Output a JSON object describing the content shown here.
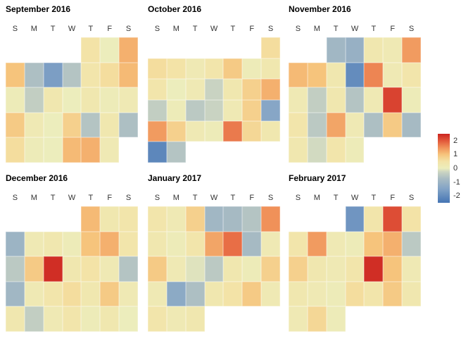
{
  "figure": {
    "background": "#ffffff"
  },
  "chart_data": {
    "type": "heatmap",
    "subtype": "calendar-heatmap",
    "title": "",
    "weekday_labels": [
      "S",
      "M",
      "T",
      "W",
      "T",
      "F",
      "S"
    ],
    "legend": {
      "position": "right",
      "ticks": [
        2,
        1,
        0,
        -1,
        -2
      ],
      "domain": [
        -2.5,
        2.5
      ]
    },
    "palette": {
      "description": "diverging blue-gray-yellow-orange-red (RdYlBu-like, low=blue high=red)",
      "stops": [
        {
          "t": 0.0,
          "color": "#4575b4"
        },
        {
          "t": 0.2,
          "color": "#82a3c6"
        },
        {
          "t": 0.35,
          "color": "#a9bcc3"
        },
        {
          "t": 0.45,
          "color": "#ccd5c2"
        },
        {
          "t": 0.5,
          "color": "#ecedbc"
        },
        {
          "t": 0.6,
          "color": "#f3e3a7"
        },
        {
          "t": 0.7,
          "color": "#f6c47c"
        },
        {
          "t": 0.8,
          "color": "#f09159"
        },
        {
          "t": 0.9,
          "color": "#e2573a"
        },
        {
          "t": 1.0,
          "color": "#cb2420"
        }
      ]
    },
    "months": [
      {
        "title": "September 2016",
        "weeks": [
          [
            null,
            null,
            null,
            null,
            0.5,
            0.0,
            1.2
          ],
          [
            1.0,
            -0.7,
            -1.6,
            -0.6,
            0.4,
            0.6,
            1.1
          ],
          [
            0.1,
            -0.4,
            0.3,
            0.0,
            0.3,
            0.1,
            0.2
          ],
          [
            0.9,
            0.2,
            0.0,
            0.8,
            -0.6,
            0.3,
            -0.7
          ],
          [
            0.6,
            0.1,
            0.0,
            1.1,
            1.2,
            0.2,
            null
          ]
        ]
      },
      {
        "title": "October 2016",
        "weeks": [
          [
            null,
            null,
            null,
            null,
            null,
            null,
            0.6
          ],
          [
            0.6,
            0.5,
            0.2,
            0.4,
            0.9,
            0.1,
            0.3
          ],
          [
            0.4,
            0.0,
            0.2,
            -0.3,
            0.3,
            0.8,
            1.2
          ],
          [
            -0.4,
            0.1,
            -0.5,
            -0.3,
            0.2,
            0.8,
            -1.4
          ],
          [
            1.4,
            0.8,
            0.2,
            0.1,
            1.7,
            0.7,
            0.3
          ],
          [
            -2.1,
            -0.6,
            null,
            null,
            null,
            null,
            null
          ]
        ]
      },
      {
        "title": "November 2016",
        "weeks": [
          [
            null,
            null,
            -0.9,
            -1.1,
            0.3,
            0.2,
            1.4
          ],
          [
            1.1,
            1.0,
            0.3,
            -2.0,
            1.6,
            0.2,
            0.4
          ],
          [
            0.2,
            -0.4,
            0.3,
            -0.6,
            0.2,
            2.2,
            0.1
          ],
          [
            0.4,
            -0.5,
            1.3,
            0.2,
            -0.7,
            0.9,
            -0.8
          ],
          [
            0.3,
            -0.2,
            0.4,
            0.1,
            null,
            null,
            null
          ]
        ]
      },
      {
        "title": "December 2016",
        "weeks": [
          [
            null,
            null,
            null,
            null,
            1.1,
            0.3,
            0.4
          ],
          [
            -1.0,
            0.2,
            0.3,
            0.1,
            1.0,
            1.2,
            0.4
          ],
          [
            -0.5,
            0.9,
            2.4,
            0.3,
            0.5,
            0.2,
            -0.6
          ],
          [
            -0.9,
            0.2,
            0.4,
            0.6,
            0.3,
            0.9,
            0.2
          ],
          [
            0.3,
            -0.4,
            0.2,
            0.4,
            0.1,
            0.3,
            0.0
          ]
        ]
      },
      {
        "title": "January 2017",
        "weeks": [
          [
            0.4,
            0.2,
            0.8,
            -0.9,
            -0.8,
            -0.6,
            1.5
          ],
          [
            0.3,
            0.1,
            0.4,
            1.3,
            1.8,
            -0.8,
            0.2
          ],
          [
            0.9,
            0.2,
            -0.1,
            -0.5,
            0.3,
            0.1,
            0.8
          ],
          [
            0.2,
            -1.3,
            -0.7,
            0.3,
            0.5,
            0.9,
            0.2
          ],
          [
            0.4,
            0.2,
            0.3,
            null,
            null,
            null,
            null
          ]
        ]
      },
      {
        "title": "February 2017",
        "weeks": [
          [
            null,
            null,
            null,
            -1.8,
            0.4,
            2.1,
            0.5
          ],
          [
            0.4,
            1.4,
            0.2,
            0.1,
            1.0,
            1.2,
            -0.5
          ],
          [
            0.8,
            0.3,
            0.2,
            0.4,
            2.4,
            1.0,
            0.2
          ],
          [
            0.3,
            0.2,
            0.1,
            0.6,
            0.4,
            0.9,
            0.3
          ],
          [
            0.2,
            0.7,
            0.1,
            null,
            null,
            null,
            null
          ]
        ]
      }
    ]
  }
}
